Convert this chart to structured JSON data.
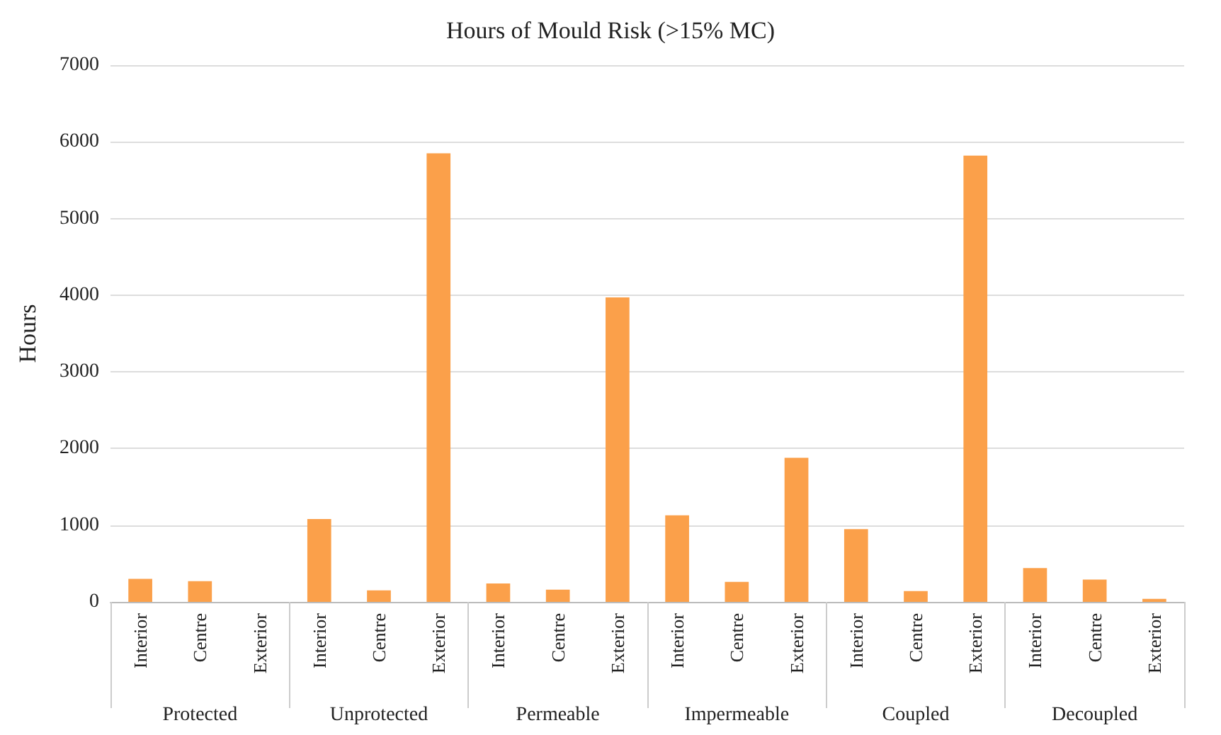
{
  "chart_data": {
    "type": "bar",
    "title": "Hours of Mould Risk (>15% MC)",
    "ylabel": "Hours",
    "categories": [
      "Interior",
      "Centre",
      "Exterior",
      "Interior",
      "Centre",
      "Exterior",
      "Interior",
      "Centre",
      "Exterior",
      "Interior",
      "Centre",
      "Exterior",
      "Interior",
      "Centre",
      "Exterior",
      "Interior",
      "Centre",
      "Exterior"
    ],
    "values": [
      300,
      270,
      0,
      1080,
      150,
      5850,
      240,
      160,
      3970,
      1130,
      260,
      1880,
      950,
      140,
      5820,
      440,
      290,
      40
    ],
    "color": "#fba04a",
    "annotations": [
      "Protected",
      "Unprotected",
      "Permeable",
      "Impermeable",
      "Coupled",
      "Decoupled"
    ],
    "ylim": [
      0,
      7000
    ],
    "yticks": [
      0,
      1000,
      2000,
      3000,
      4000,
      5000,
      6000,
      7000
    ],
    "grid": "y"
  }
}
